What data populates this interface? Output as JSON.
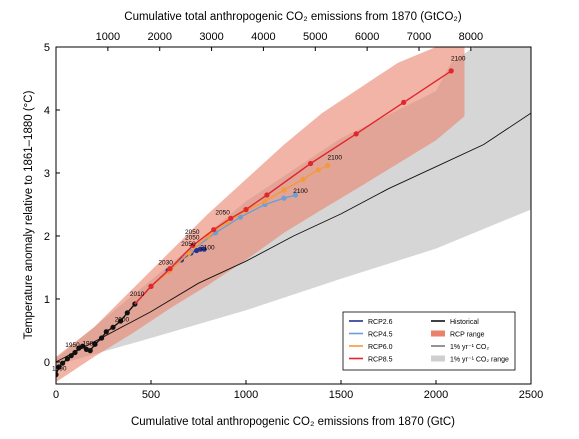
{
  "chart_data": {
    "type": "line",
    "title": "",
    "xlabel": "Cumulative total anthropogenic CO₂ emissions from 1870 (GtC)",
    "x2label": "Cumulative total anthropogenic CO₂ emissions from 1870 (GtCO₂)",
    "ylabel": "Temperature anomaly relative to 1861–1880 (°C)",
    "xlim": [
      0,
      2500
    ],
    "ylim": [
      -0.35,
      5
    ],
    "xticks": [
      0,
      500,
      1000,
      1500,
      2000,
      2500
    ],
    "yticks": [
      0,
      1,
      2,
      3,
      4,
      5
    ],
    "x2ticks": [
      1000,
      2000,
      3000,
      4000,
      5000,
      6000,
      7000,
      8000
    ],
    "grid": false,
    "legend_position": "bottom-right",
    "colors": {
      "rcp26": "#25318f",
      "rcp45": "#6b9fd8",
      "rcp60": "#f39a3c",
      "rcp85": "#e2262b",
      "historical": "#111111",
      "rcp_range": "#e8826a",
      "onepct_range": "#cfcfcf"
    },
    "legend": [
      {
        "label": "RCP2.6",
        "kind": "line",
        "color": "#25318f"
      },
      {
        "label": "RCP4.5",
        "kind": "line",
        "color": "#6b9fd8"
      },
      {
        "label": "RCP6.0",
        "kind": "line",
        "color": "#f39a3c"
      },
      {
        "label": "RCP8.5",
        "kind": "line",
        "color": "#e2262b"
      },
      {
        "label": "Historical",
        "kind": "line",
        "color": "#111111"
      },
      {
        "label": "RCP range",
        "kind": "patch",
        "color": "#e8826a"
      },
      {
        "label": "1% yr⁻¹ CO₂",
        "kind": "thin",
        "color": "#111111"
      },
      {
        "label": "1% yr⁻¹ CO₂ range",
        "kind": "patch",
        "color": "#cfcfcf"
      }
    ],
    "series": [
      {
        "name": "Historical",
        "color": "#111111",
        "points": [
          [
            0,
            -0.2
          ],
          [
            15,
            -0.08
          ],
          [
            35,
            -0.02
          ],
          [
            60,
            0.05
          ],
          [
            80,
            0.1
          ],
          [
            100,
            0.15
          ],
          [
            120,
            0.22
          ],
          [
            140,
            0.25
          ],
          [
            160,
            0.2
          ],
          [
            180,
            0.18
          ],
          [
            205,
            0.28
          ],
          [
            240,
            0.38
          ],
          [
            265,
            0.48
          ],
          [
            300,
            0.55
          ],
          [
            340,
            0.65
          ],
          [
            375,
            0.78
          ],
          [
            415,
            0.92
          ]
        ],
        "labels": [
          {
            "text": "1890",
            "at": [
              0,
              -0.2
            ]
          },
          {
            "text": "1950",
            "at": [
              70,
              0.17
            ]
          },
          {
            "text": "1980",
            "at": [
              160,
              0.2
            ]
          },
          {
            "text": "2000",
            "at": [
              330,
              0.58
            ]
          },
          {
            "text": "2010",
            "at": [
              410,
              0.98
            ]
          }
        ]
      },
      {
        "name": "RCP2.6",
        "color": "#25318f",
        "points": [
          [
            415,
            0.92
          ],
          [
            500,
            1.2
          ],
          [
            590,
            1.45
          ],
          [
            660,
            1.62
          ],
          [
            710,
            1.73
          ],
          [
            740,
            1.77
          ],
          [
            760,
            1.79
          ],
          [
            780,
            1.79
          ]
        ],
        "labels": [
          {
            "text": "2030",
            "at": [
              560,
              1.48
            ]
          },
          {
            "text": "2050",
            "at": [
              680,
              1.78
            ]
          },
          {
            "text": "2100",
            "at": [
              780,
              1.72
            ]
          }
        ]
      },
      {
        "name": "RCP4.5",
        "color": "#6b9fd8",
        "points": [
          [
            415,
            0.92
          ],
          [
            500,
            1.2
          ],
          [
            600,
            1.48
          ],
          [
            710,
            1.76
          ],
          [
            840,
            2.05
          ],
          [
            970,
            2.3
          ],
          [
            1100,
            2.5
          ],
          [
            1200,
            2.6
          ],
          [
            1260,
            2.65
          ]
        ],
        "labels": [
          {
            "text": "2050",
            "at": [
              700,
              1.88
            ]
          },
          {
            "text": "2100",
            "at": [
              1270,
              2.62
            ]
          }
        ]
      },
      {
        "name": "RCP6.0",
        "color": "#f39a3c",
        "points": [
          [
            415,
            0.92
          ],
          [
            500,
            1.2
          ],
          [
            600,
            1.45
          ],
          [
            700,
            1.73
          ],
          [
            800,
            2.0
          ],
          [
            900,
            2.22
          ],
          [
            1000,
            2.4
          ],
          [
            1100,
            2.55
          ],
          [
            1200,
            2.73
          ],
          [
            1300,
            2.9
          ],
          [
            1380,
            3.05
          ],
          [
            1430,
            3.12
          ]
        ],
        "labels": [
          {
            "text": "2050",
            "at": [
              700,
              1.97
            ]
          },
          {
            "text": "2100",
            "at": [
              1450,
              3.15
            ]
          }
        ]
      },
      {
        "name": "RCP8.5",
        "color": "#e2262b",
        "points": [
          [
            415,
            0.92
          ],
          [
            500,
            1.2
          ],
          [
            600,
            1.48
          ],
          [
            720,
            1.85
          ],
          [
            830,
            2.1
          ],
          [
            920,
            2.28
          ],
          [
            1000,
            2.42
          ],
          [
            1110,
            2.65
          ],
          [
            1340,
            3.15
          ],
          [
            1580,
            3.62
          ],
          [
            1830,
            4.12
          ],
          [
            2080,
            4.62
          ]
        ],
        "labels": [
          {
            "text": "2050",
            "at": [
              860,
              2.28
            ]
          },
          {
            "text": "2100",
            "at": [
              2100,
              4.72
            ]
          }
        ]
      },
      {
        "name": "1% yr⁻¹ CO₂",
        "color": "#111111",
        "points": [
          [
            0,
            0
          ],
          [
            250,
            0.4
          ],
          [
            500,
            0.8
          ],
          [
            750,
            1.25
          ],
          [
            1000,
            1.6
          ],
          [
            1250,
            2.0
          ],
          [
            1500,
            2.35
          ],
          [
            1750,
            2.75
          ],
          [
            2000,
            3.1
          ],
          [
            2250,
            3.45
          ],
          [
            2500,
            3.95
          ]
        ]
      }
    ],
    "bands": [
      {
        "name": "1% yr⁻¹ CO₂ range",
        "color": "#cfcfcf",
        "upper": [
          [
            0,
            0.05
          ],
          [
            500,
            1.3
          ],
          [
            1000,
            2.55
          ],
          [
            1500,
            3.55
          ],
          [
            2000,
            4.3
          ],
          [
            2080,
            4.75
          ],
          [
            2200,
            5.0
          ],
          [
            2500,
            5.0
          ]
        ],
        "lower": [
          [
            2500,
            2.42
          ],
          [
            2000,
            1.8
          ],
          [
            1500,
            1.32
          ],
          [
            1000,
            0.82
          ],
          [
            500,
            0.38
          ],
          [
            0,
            -0.05
          ]
        ]
      },
      {
        "name": "RCP range",
        "color": "#e8826a",
        "upper": [
          [
            0,
            0.08
          ],
          [
            200,
            0.55
          ],
          [
            400,
            1.15
          ],
          [
            600,
            1.75
          ],
          [
            800,
            2.35
          ],
          [
            1000,
            2.9
          ],
          [
            1200,
            3.45
          ],
          [
            1400,
            3.95
          ],
          [
            1600,
            4.35
          ],
          [
            1800,
            4.75
          ],
          [
            2000,
            5.0
          ],
          [
            2150,
            5.0
          ]
        ],
        "lower": [
          [
            2150,
            3.9
          ],
          [
            2000,
            3.52
          ],
          [
            1800,
            3.15
          ],
          [
            1600,
            2.78
          ],
          [
            1400,
            2.42
          ],
          [
            1200,
            2.05
          ],
          [
            1000,
            1.62
          ],
          [
            800,
            1.22
          ],
          [
            600,
            0.85
          ],
          [
            400,
            0.45
          ],
          [
            200,
            0.08
          ],
          [
            0,
            -0.32
          ]
        ]
      }
    ]
  }
}
